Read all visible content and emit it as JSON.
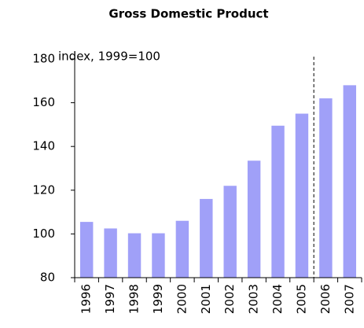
{
  "chart_data": {
    "type": "bar",
    "title": "Gross Domestic Product",
    "annotation": "index, 1999=100",
    "categories": [
      "1996",
      "1997",
      "1998",
      "1999",
      "2000",
      "2001",
      "2002",
      "2003",
      "2004",
      "2005",
      "2006",
      "2007"
    ],
    "values": [
      105.5,
      102.5,
      100.3,
      100.3,
      106,
      116,
      122,
      133.5,
      149.5,
      155,
      162,
      168
    ],
    "color": "#a0a0f8",
    "ylim": [
      80,
      180
    ],
    "yticks": [
      80,
      100,
      120,
      140,
      160,
      180
    ]
  }
}
